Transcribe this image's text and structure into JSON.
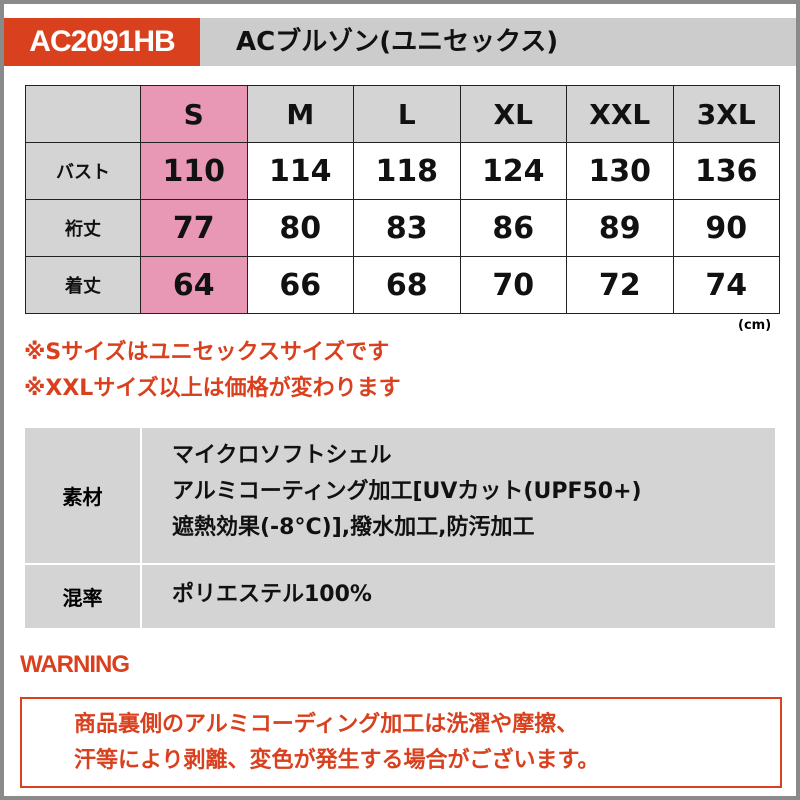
{
  "header": {
    "code": "AC2091HB",
    "title": "ACブルゾン(ユニセックス)"
  },
  "size_table": {
    "sizes": [
      "S",
      "M",
      "L",
      "XL",
      "XXL",
      "3XL"
    ],
    "rows": [
      {
        "label": "バスト",
        "values": [
          "110",
          "114",
          "118",
          "124",
          "130",
          "136"
        ]
      },
      {
        "label": "裄丈",
        "values": [
          "77",
          "80",
          "83",
          "86",
          "89",
          "90"
        ]
      },
      {
        "label": "着丈",
        "values": [
          "64",
          "66",
          "68",
          "70",
          "72",
          "74"
        ]
      }
    ],
    "unit": "(cm)"
  },
  "notes": [
    "※Sサイズはユニセックスサイズです",
    "※XXLサイズ以上は価格が変わります"
  ],
  "material": {
    "rows": [
      {
        "label": "素材",
        "lines": [
          "マイクロソフトシェル",
          "アルミコーティング加工[UVカット(UPF50+)",
          "遮熱効果(-8°C)],撥水加工,防汚加工"
        ]
      },
      {
        "label": "混率",
        "lines": [
          "ポリエステル100%"
        ]
      }
    ]
  },
  "warning": {
    "label": "WARNING",
    "lines": [
      "商品裏側のアルミコーディング加工は洗濯や摩擦、",
      "汗等により剥離、変色が発生する場合がございます。"
    ]
  },
  "colors": {
    "accent": "#d9401e",
    "highlight": "#e898b5",
    "gray": "#d4d4d4"
  }
}
